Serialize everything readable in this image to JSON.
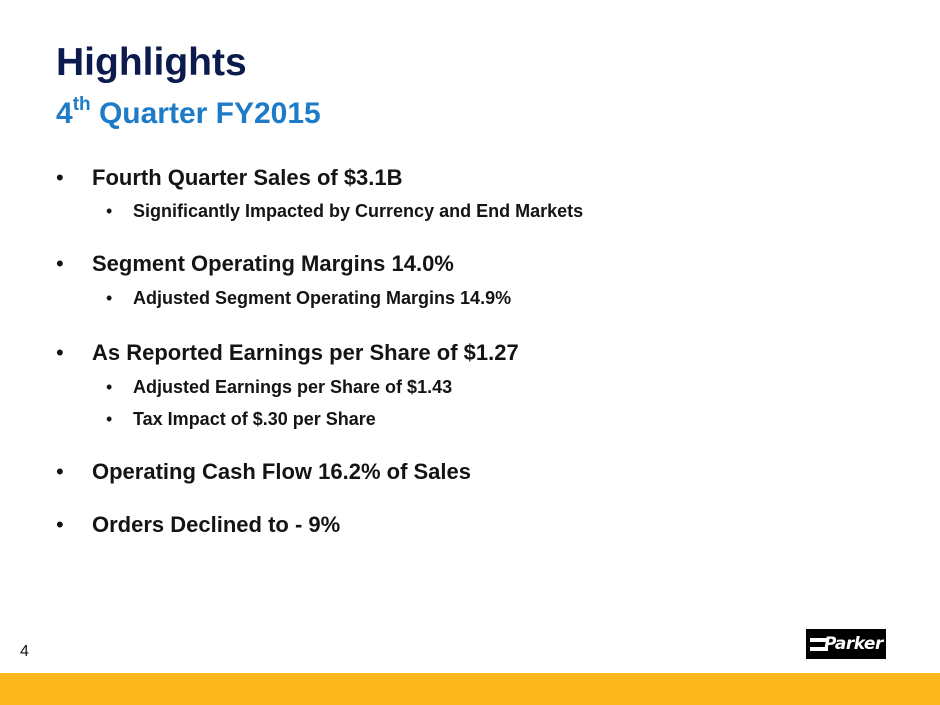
{
  "slide": {
    "title": "Highlights",
    "subtitle_prefix": "4",
    "subtitle_sup": "th",
    "subtitle_rest": " Quarter FY2015",
    "page_number": "4",
    "bullet_char": "•",
    "logo_text": "Parker",
    "colors": {
      "title": "#0d1a4e",
      "subtitle": "#1d7bc7",
      "footer_bar": "#fdb71a"
    },
    "bullets": [
      {
        "text": "Fourth Quarter Sales of $3.1B"
      },
      {
        "text": "Significantly Impacted by Currency and End Markets"
      },
      {
        "text": "Segment Operating Margins 14.0%"
      },
      {
        "text": "Adjusted Segment Operating Margins 14.9%"
      },
      {
        "text": "As Reported Earnings per Share of $1.27"
      },
      {
        "text": "Adjusted Earnings per Share of $1.43"
      },
      {
        "text": "Tax Impact of $.30 per Share"
      },
      {
        "text": "Operating Cash Flow 16.2% of Sales"
      },
      {
        "text": "Orders Declined to - 9%"
      }
    ]
  }
}
